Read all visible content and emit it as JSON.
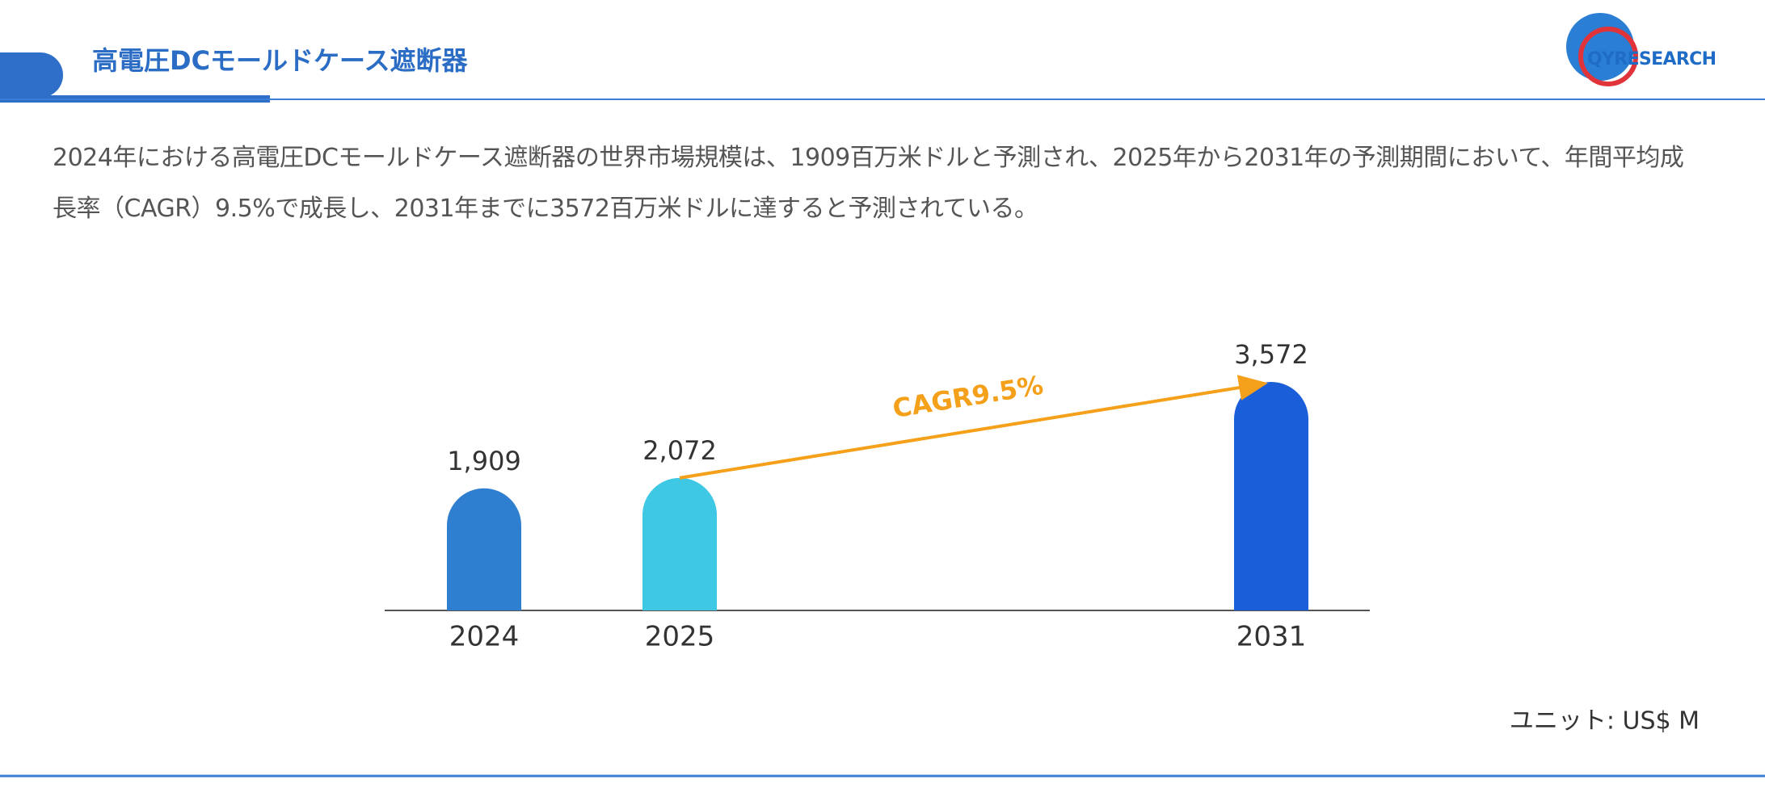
{
  "header": {
    "title": "高電圧DCモールドケース遮断器",
    "logo": "QYRESEARCH"
  },
  "description": "2024年における高電圧DCモールドケース遮断器の世界市場規模は、1909百万米ドルと予測され、2025年から2031年の予測期間において、年間平均成長率（CAGR）9.5%で成長し、2031年までに3572百万米ドルに達すると予測されている。",
  "chart_data": {
    "type": "bar",
    "categories": [
      "2024",
      "2025",
      "2031"
    ],
    "values": [
      1909,
      2072,
      3572
    ],
    "value_labels": [
      "1,909",
      "2,072",
      "3,572"
    ],
    "colors": [
      "#2f7fd1",
      "#3ec8e4",
      "#1a5fd9"
    ],
    "annotation": "CAGR9.5%",
    "annotation_color": "#f5a01a"
  },
  "unit_note": "ユニット: US$ M"
}
